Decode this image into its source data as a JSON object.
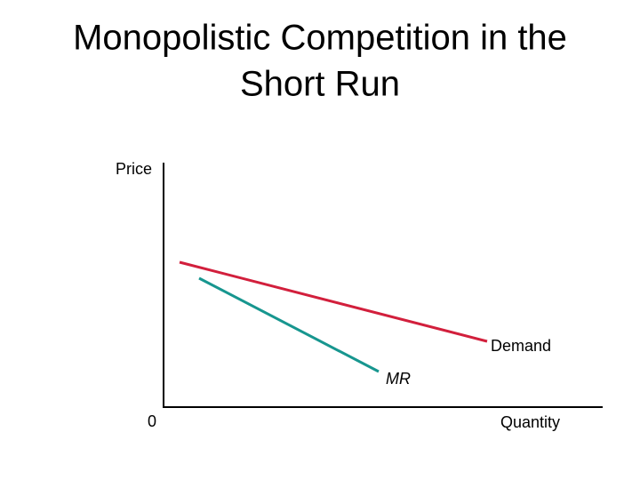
{
  "title": {
    "lines": [
      "Monopolistic Competition in the",
      "Short Run"
    ]
  },
  "axes": {
    "y_label": "Price",
    "x_label": "Quantity",
    "origin": "0"
  },
  "curves": {
    "demand": "Demand",
    "mr": "MR"
  }
}
